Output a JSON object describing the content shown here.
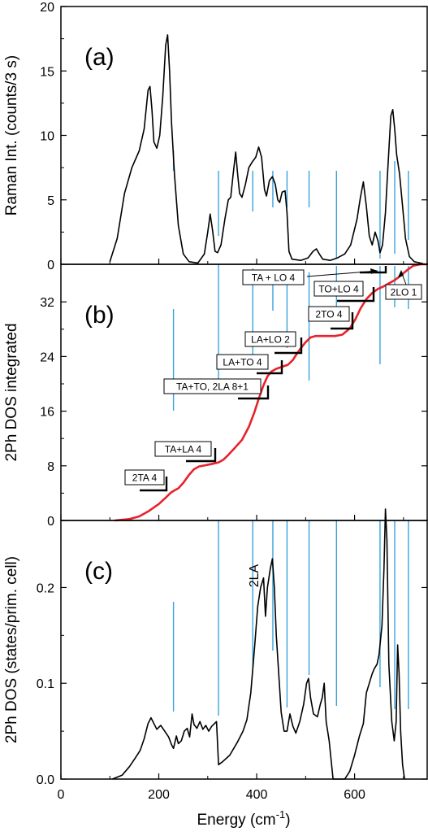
{
  "chart_data": [
    {
      "panel": "(a)",
      "type": "line",
      "ylabel": "Raman Int. (counts/3 s)",
      "ylim": [
        0,
        20
      ],
      "yticks": [
        "0",
        "5",
        "10",
        "15",
        "20"
      ],
      "xlim": [
        0,
        750
      ],
      "series": [
        {
          "points": [
            [
              100,
              0.2
            ],
            [
              115,
              2
            ],
            [
              130,
              5.5
            ],
            [
              145,
              7.5
            ],
            [
              160,
              8.8
            ],
            [
              170,
              10.5
            ],
            [
              178,
              13.5
            ],
            [
              182,
              13.8
            ],
            [
              186,
              12
            ],
            [
              190,
              9.5
            ],
            [
              196,
              9
            ],
            [
              202,
              10
            ],
            [
              208,
              13
            ],
            [
              214,
              17
            ],
            [
              218,
              17.8
            ],
            [
              222,
              15
            ],
            [
              226,
              11
            ],
            [
              232,
              7
            ],
            [
              240,
              3
            ],
            [
              250,
              0.8
            ],
            [
              262,
              0.2
            ],
            [
              280,
              0.1
            ],
            [
              293,
              0.8
            ],
            [
              300,
              2.5
            ],
            [
              305,
              3.9
            ],
            [
              310,
              2.6
            ],
            [
              315,
              1
            ],
            [
              320,
              0.9
            ],
            [
              327,
              1.5
            ],
            [
              335,
              3.5
            ],
            [
              342,
              5
            ],
            [
              347,
              5.2
            ],
            [
              352,
              7
            ],
            [
              357,
              8.7
            ],
            [
              361,
              7
            ],
            [
              365,
              5.5
            ],
            [
              370,
              5.2
            ],
            [
              377,
              6.2
            ],
            [
              384,
              7.5
            ],
            [
              392,
              8
            ],
            [
              398,
              8.3
            ],
            [
              404,
              9.1
            ],
            [
              410,
              8.3
            ],
            [
              416,
              5.8
            ],
            [
              420,
              5.3
            ],
            [
              426,
              6.5
            ],
            [
              432,
              6.8
            ],
            [
              438,
              6.2
            ],
            [
              443,
              5
            ],
            [
              447,
              4.8
            ],
            [
              452,
              5.6
            ],
            [
              458,
              5.7
            ],
            [
              462,
              4
            ],
            [
              466,
              1
            ],
            [
              472,
              0.4
            ],
            [
              490,
              0.3
            ],
            [
              505,
              0.5
            ],
            [
              515,
              1
            ],
            [
              522,
              1.2
            ],
            [
              528,
              0.8
            ],
            [
              535,
              0.4
            ],
            [
              550,
              0.3
            ],
            [
              565,
              0.5
            ],
            [
              580,
              0.8
            ],
            [
              592,
              1.5
            ],
            [
              605,
              3.5
            ],
            [
              612,
              5.2
            ],
            [
              618,
              6.4
            ],
            [
              624,
              4.5
            ],
            [
              630,
              2.2
            ],
            [
              636,
              1.5
            ],
            [
              642,
              2.5
            ],
            [
              648,
              1.8
            ],
            [
              652,
              0.9
            ],
            [
              657,
              1.5
            ],
            [
              663,
              4
            ],
            [
              668,
              7.5
            ],
            [
              674,
              11.5
            ],
            [
              678,
              12
            ],
            [
              682,
              10.5
            ],
            [
              686,
              8.5
            ],
            [
              692,
              7
            ],
            [
              698,
              4.5
            ],
            [
              704,
              2
            ],
            [
              712,
              0.6
            ],
            [
              722,
              0.2
            ],
            [
              740,
              0.05
            ]
          ]
        }
      ]
    },
    {
      "panel": "(b)",
      "type": "line",
      "ylabel": "2Ph DOS integrated",
      "ylim": [
        0,
        37.5
      ],
      "yticks": [
        "0",
        "8",
        "16",
        "24",
        "32"
      ],
      "xlim": [
        0,
        750
      ],
      "series": [
        {
          "points": [
            [
              110,
              0
            ],
            [
              140,
              0.2
            ],
            [
              160,
              0.6
            ],
            [
              180,
              1.4
            ],
            [
              200,
              2.4
            ],
            [
              215,
              3.4
            ],
            [
              225,
              4.1
            ],
            [
              232,
              4.4
            ],
            [
              240,
              4.7
            ],
            [
              250,
              5.5
            ],
            [
              262,
              6.7
            ],
            [
              272,
              7.5
            ],
            [
              282,
              7.9
            ],
            [
              296,
              8.1
            ],
            [
              310,
              8.3
            ],
            [
              322,
              8.5
            ],
            [
              332,
              8.9
            ],
            [
              342,
              9.6
            ],
            [
              355,
              10.6
            ],
            [
              370,
              11.8
            ],
            [
              384,
              13.7
            ],
            [
              395,
              15.8
            ],
            [
              405,
              18
            ],
            [
              414,
              19.8
            ],
            [
              422,
              21.1
            ],
            [
              430,
              21.8
            ],
            [
              440,
              22.2
            ],
            [
              452,
              22.5
            ],
            [
              464,
              22.8
            ],
            [
              474,
              23.5
            ],
            [
              482,
              24.4
            ],
            [
              490,
              25.2
            ],
            [
              500,
              26.1
            ],
            [
              510,
              26.8
            ],
            [
              520,
              27
            ],
            [
              540,
              27
            ],
            [
              560,
              27
            ],
            [
              575,
              27.2
            ],
            [
              590,
              28.1
            ],
            [
              602,
              29.5
            ],
            [
              612,
              31
            ],
            [
              624,
              32.4
            ],
            [
              636,
              33.3
            ],
            [
              648,
              33.9
            ],
            [
              660,
              34.3
            ],
            [
              670,
              34.7
            ],
            [
              680,
              35.1
            ],
            [
              690,
              35.6
            ],
            [
              700,
              36.2
            ],
            [
              710,
              36.8
            ],
            [
              720,
              37.3
            ],
            [
              735,
              37.5
            ],
            [
              750,
              37.5
            ]
          ]
        }
      ],
      "annotations": [
        {
          "label": "2TA 4",
          "x": 200,
          "y": 4.3
        },
        {
          "label": "TA+LA 4",
          "x": 265,
          "y": 8.3
        },
        {
          "label": "TA+TO, 2LA 8+1",
          "x": 375,
          "y": 17
        },
        {
          "label": "LA+TO 4",
          "x": 430,
          "y": 21
        },
        {
          "label": "LA+LO 2",
          "x": 450,
          "y": 23
        },
        {
          "label": "2TO 4",
          "x": 525,
          "y": 27
        },
        {
          "label": "TO+LO 4",
          "x": 645,
          "y": 31
        },
        {
          "label": "TA + LO 4",
          "x": 655,
          "y": 35
        },
        {
          "label": "2LO 1",
          "x": 690,
          "y": 37
        }
      ]
    },
    {
      "panel": "(c)",
      "type": "line",
      "ylabel": "2Ph DOS (states/prim. cell)",
      "ylim": [
        0,
        0.27
      ],
      "yticks": [
        "0.0",
        "0.1",
        "0.2"
      ],
      "xlim": [
        0,
        750
      ],
      "xlabel": "Energy (cm",
      "xlabel_sup": "-1",
      "xlabel_end": ")",
      "xticks": [
        "0",
        "200",
        "400",
        "600"
      ],
      "annotation": "2LA",
      "series": [
        {
          "points": [
            [
              105,
              0
            ],
            [
              125,
              0.004
            ],
            [
              140,
              0.013
            ],
            [
              152,
              0.022
            ],
            [
              162,
              0.03
            ],
            [
              170,
              0.042
            ],
            [
              178,
              0.058
            ],
            [
              184,
              0.064
            ],
            [
              190,
              0.058
            ],
            [
              196,
              0.052
            ],
            [
              204,
              0.056
            ],
            [
              212,
              0.05
            ],
            [
              220,
              0.044
            ],
            [
              226,
              0.036
            ],
            [
              230,
              0.032
            ],
            [
              236,
              0.045
            ],
            [
              240,
              0.037
            ],
            [
              246,
              0.04
            ],
            [
              252,
              0.05
            ],
            [
              258,
              0.053
            ],
            [
              263,
              0.044
            ],
            [
              268,
              0.068
            ],
            [
              272,
              0.057
            ],
            [
              278,
              0.053
            ],
            [
              284,
              0.06
            ],
            [
              290,
              0.052
            ],
            [
              296,
              0.056
            ],
            [
              302,
              0.05
            ],
            [
              308,
              0.055
            ],
            [
              314,
              0.058
            ],
            [
              318,
              0.06
            ],
            [
              322,
              0.015
            ],
            [
              330,
              0.018
            ],
            [
              345,
              0.025
            ],
            [
              360,
              0.038
            ],
            [
              372,
              0.05
            ],
            [
              380,
              0.062
            ],
            [
              388,
              0.09
            ],
            [
              396,
              0.14
            ],
            [
              402,
              0.18
            ],
            [
              408,
              0.2
            ],
            [
              414,
              0.21
            ],
            [
              418,
              0.17
            ],
            [
              422,
              0.2
            ],
            [
              428,
              0.22
            ],
            [
              432,
              0.23
            ],
            [
              436,
              0.2
            ],
            [
              440,
              0.15
            ],
            [
              445,
              0.11
            ],
            [
              450,
              0.07
            ],
            [
              456,
              0.05
            ],
            [
              462,
              0.05
            ],
            [
              468,
              0.068
            ],
            [
              474,
              0.055
            ],
            [
              480,
              0.048
            ],
            [
              488,
              0.06
            ],
            [
              496,
              0.078
            ],
            [
              502,
              0.1
            ],
            [
              506,
              0.105
            ],
            [
              510,
              0.085
            ],
            [
              516,
              0.068
            ],
            [
              524,
              0.065
            ],
            [
              530,
              0.078
            ],
            [
              534,
              0.085
            ],
            [
              538,
              0.1
            ],
            [
              542,
              0.06
            ],
            [
              548,
              0.04
            ],
            [
              552,
              0.02
            ],
            [
              556,
              0
            ],
            [
              580,
              0
            ],
            [
              590,
              0.008
            ],
            [
              600,
              0.025
            ],
            [
              610,
              0.045
            ],
            [
              618,
              0.058
            ],
            [
              624,
              0.09
            ],
            [
              630,
              0.1
            ],
            [
              636,
              0.11
            ],
            [
              640,
              0.115
            ],
            [
              646,
              0.12
            ],
            [
              650,
              0.13
            ],
            [
              656,
              0.16
            ],
            [
              660,
              0.22
            ],
            [
              663,
              0.282
            ],
            [
              666,
              0.25
            ],
            [
              670,
              0.12
            ],
            [
              676,
              0.06
            ],
            [
              681,
              0.04
            ],
            [
              685,
              0.06
            ],
            [
              688,
              0.14
            ],
            [
              691,
              0.11
            ],
            [
              694,
              0.05
            ],
            [
              698,
              0.015
            ],
            [
              702,
              0
            ]
          ]
        }
      ]
    }
  ],
  "vertical_markers": [
    230,
    322,
    392,
    433,
    462,
    507,
    563,
    652,
    682,
    710
  ],
  "colors": {
    "curve_a_c": "#000000",
    "curve_b": "#e8222a",
    "marker_lines": "#3aa3dc"
  }
}
